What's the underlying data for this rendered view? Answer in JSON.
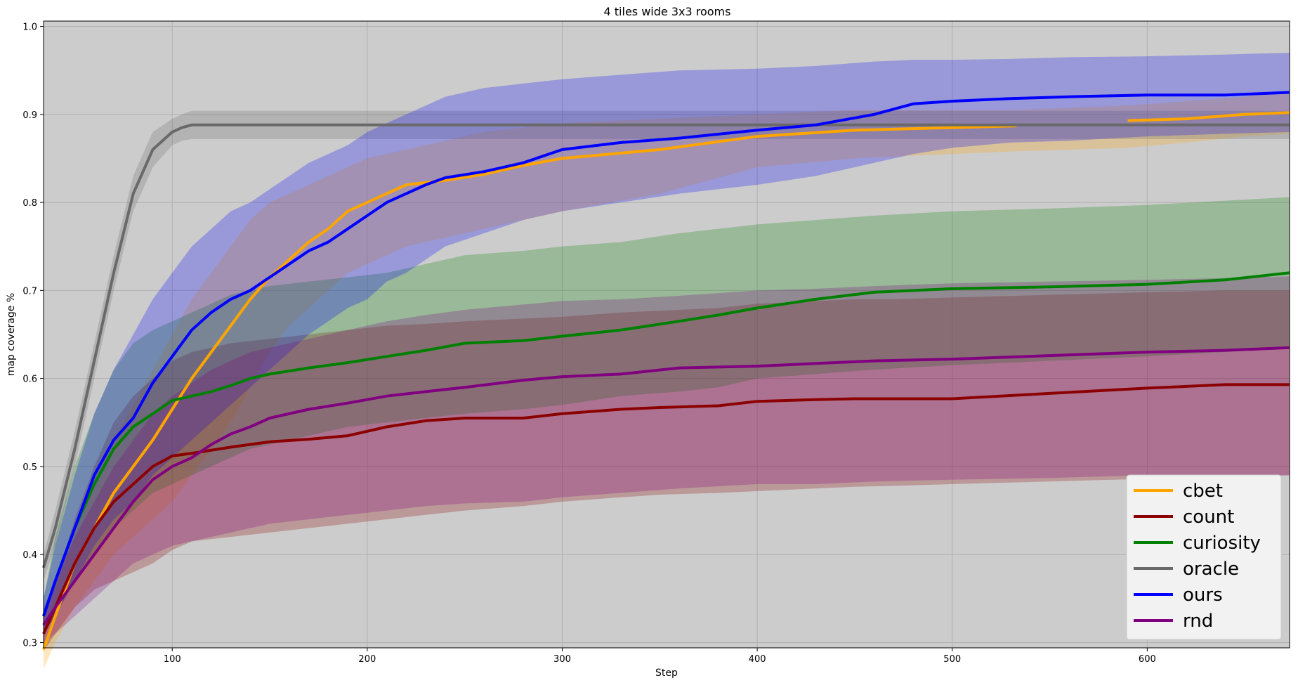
{
  "chart_data": {
    "type": "line",
    "title": "4 tiles wide 3x3 rooms",
    "xlabel": "Step",
    "ylabel": "map coverage %",
    "xlim": [
      34,
      673
    ],
    "ylim": [
      0.294,
      1.006
    ],
    "xticks": [
      100,
      200,
      300,
      400,
      500,
      600
    ],
    "yticks": [
      0.3,
      0.4,
      0.5,
      0.6,
      0.7,
      0.8,
      0.9,
      1.0
    ],
    "grid": true,
    "background": "#cccccc",
    "legend_position": "lower right",
    "series": [
      {
        "name": "cbet",
        "color": "#ffa500",
        "x": [
          34,
          40,
          50,
          60,
          70,
          80,
          90,
          100,
          110,
          120,
          130,
          140,
          150,
          160,
          170,
          180,
          190,
          200,
          220,
          240,
          260,
          280,
          300,
          350,
          400,
          450,
          500,
          533,
          590,
          620,
          650,
          673
        ],
        "y": [
          0.292,
          0.33,
          0.39,
          0.43,
          0.47,
          0.5,
          0.53,
          0.565,
          0.6,
          0.63,
          0.66,
          0.69,
          0.715,
          0.735,
          0.755,
          0.77,
          0.79,
          0.8,
          0.82,
          0.825,
          0.832,
          0.842,
          0.85,
          0.86,
          0.875,
          0.882,
          0.885,
          0.887,
          0.893,
          0.895,
          0.9,
          0.902
        ],
        "gap": [
          533,
          590
        ],
        "lower": [
          0.27,
          0.3,
          0.34,
          0.37,
          0.4,
          0.42,
          0.44,
          0.46,
          0.49,
          0.52,
          0.55,
          0.59,
          0.63,
          0.66,
          0.68,
          0.7,
          0.72,
          0.73,
          0.75,
          0.76,
          0.77,
          0.78,
          0.79,
          0.81,
          0.84,
          0.85,
          0.855,
          0.858,
          0.862,
          0.868,
          0.875,
          0.878
        ],
        "upper": [
          0.31,
          0.36,
          0.42,
          0.48,
          0.53,
          0.57,
          0.61,
          0.65,
          0.69,
          0.72,
          0.75,
          0.78,
          0.8,
          0.81,
          0.82,
          0.83,
          0.84,
          0.85,
          0.86,
          0.87,
          0.88,
          0.885,
          0.89,
          0.895,
          0.9,
          0.905,
          0.905,
          0.905,
          0.91,
          0.915,
          0.92,
          0.925
        ]
      },
      {
        "name": "count",
        "color": "#8b0000",
        "x": [
          34,
          40,
          50,
          60,
          70,
          80,
          90,
          100,
          110,
          130,
          150,
          170,
          190,
          210,
          230,
          250,
          280,
          300,
          330,
          350,
          380,
          400,
          430,
          450,
          470,
          500,
          550,
          600,
          640,
          673
        ],
        "y": [
          0.31,
          0.34,
          0.39,
          0.43,
          0.46,
          0.48,
          0.5,
          0.512,
          0.515,
          0.522,
          0.528,
          0.531,
          0.535,
          0.545,
          0.552,
          0.555,
          0.555,
          0.56,
          0.565,
          0.567,
          0.569,
          0.574,
          0.576,
          0.577,
          0.577,
          0.577,
          0.583,
          0.589,
          0.593,
          0.593
        ],
        "lower": [
          0.29,
          0.31,
          0.34,
          0.36,
          0.37,
          0.38,
          0.39,
          0.405,
          0.415,
          0.42,
          0.425,
          0.43,
          0.435,
          0.44,
          0.445,
          0.45,
          0.455,
          0.46,
          0.465,
          0.468,
          0.47,
          0.472,
          0.475,
          0.477,
          0.478,
          0.48,
          0.483,
          0.486,
          0.488,
          0.49
        ],
        "upper": [
          0.33,
          0.37,
          0.44,
          0.5,
          0.55,
          0.58,
          0.6,
          0.62,
          0.63,
          0.64,
          0.645,
          0.65,
          0.655,
          0.66,
          0.662,
          0.665,
          0.668,
          0.67,
          0.675,
          0.677,
          0.68,
          0.685,
          0.688,
          0.69,
          0.69,
          0.692,
          0.695,
          0.698,
          0.7,
          0.7
        ]
      },
      {
        "name": "curiosity",
        "color": "#008000",
        "x": [
          34,
          40,
          50,
          60,
          70,
          80,
          90,
          100,
          110,
          120,
          130,
          140,
          150,
          170,
          190,
          210,
          230,
          250,
          280,
          300,
          330,
          360,
          380,
          400,
          430,
          460,
          500,
          550,
          600,
          640,
          673
        ],
        "y": [
          0.33,
          0.37,
          0.43,
          0.48,
          0.52,
          0.545,
          0.56,
          0.575,
          0.58,
          0.585,
          0.592,
          0.6,
          0.605,
          0.612,
          0.618,
          0.625,
          0.632,
          0.64,
          0.643,
          0.648,
          0.655,
          0.665,
          0.672,
          0.68,
          0.69,
          0.698,
          0.702,
          0.704,
          0.707,
          0.712,
          0.72
        ],
        "lower": [
          0.31,
          0.33,
          0.37,
          0.4,
          0.43,
          0.45,
          0.47,
          0.48,
          0.49,
          0.5,
          0.51,
          0.52,
          0.525,
          0.535,
          0.545,
          0.55,
          0.555,
          0.56,
          0.565,
          0.57,
          0.58,
          0.585,
          0.59,
          0.6,
          0.605,
          0.61,
          0.615,
          0.62,
          0.625,
          0.63,
          0.635
        ],
        "upper": [
          0.35,
          0.42,
          0.5,
          0.56,
          0.61,
          0.64,
          0.655,
          0.665,
          0.675,
          0.685,
          0.695,
          0.7,
          0.705,
          0.71,
          0.715,
          0.72,
          0.73,
          0.74,
          0.745,
          0.75,
          0.755,
          0.765,
          0.77,
          0.775,
          0.78,
          0.785,
          0.79,
          0.793,
          0.797,
          0.802,
          0.806
        ]
      },
      {
        "name": "oracle",
        "color": "#696969",
        "x": [
          34,
          40,
          50,
          60,
          70,
          80,
          90,
          100,
          105,
          110,
          150,
          200,
          300,
          400,
          500,
          600,
          673
        ],
        "y": [
          0.385,
          0.43,
          0.52,
          0.62,
          0.72,
          0.81,
          0.86,
          0.88,
          0.885,
          0.888,
          0.888,
          0.888,
          0.888,
          0.888,
          0.888,
          0.888,
          0.888
        ],
        "lower": [
          0.37,
          0.41,
          0.5,
          0.6,
          0.7,
          0.79,
          0.84,
          0.865,
          0.87,
          0.872,
          0.872,
          0.872,
          0.872,
          0.872,
          0.872,
          0.872,
          0.872
        ],
        "upper": [
          0.4,
          0.45,
          0.54,
          0.64,
          0.74,
          0.83,
          0.88,
          0.895,
          0.9,
          0.904,
          0.904,
          0.904,
          0.904,
          0.904,
          0.904,
          0.904,
          0.904
        ]
      },
      {
        "name": "ours",
        "color": "#0000ff",
        "x": [
          34,
          40,
          50,
          60,
          70,
          80,
          90,
          100,
          110,
          120,
          130,
          140,
          150,
          160,
          170,
          180,
          190,
          200,
          210,
          220,
          230,
          240,
          260,
          280,
          300,
          330,
          360,
          400,
          430,
          460,
          480,
          500,
          530,
          560,
          600,
          640,
          673
        ],
        "y": [
          0.33,
          0.37,
          0.43,
          0.49,
          0.53,
          0.555,
          0.595,
          0.625,
          0.655,
          0.675,
          0.69,
          0.7,
          0.715,
          0.73,
          0.745,
          0.755,
          0.77,
          0.785,
          0.8,
          0.81,
          0.82,
          0.828,
          0.835,
          0.845,
          0.86,
          0.868,
          0.873,
          0.882,
          0.888,
          0.9,
          0.912,
          0.915,
          0.918,
          0.92,
          0.922,
          0.922,
          0.925
        ],
        "lower": [
          0.31,
          0.33,
          0.37,
          0.41,
          0.44,
          0.46,
          0.49,
          0.51,
          0.53,
          0.55,
          0.57,
          0.59,
          0.61,
          0.63,
          0.65,
          0.665,
          0.68,
          0.69,
          0.71,
          0.72,
          0.735,
          0.75,
          0.765,
          0.78,
          0.79,
          0.8,
          0.81,
          0.82,
          0.83,
          0.845,
          0.855,
          0.862,
          0.868,
          0.87,
          0.875,
          0.878,
          0.88
        ],
        "upper": [
          0.35,
          0.41,
          0.49,
          0.56,
          0.61,
          0.65,
          0.69,
          0.72,
          0.75,
          0.77,
          0.79,
          0.8,
          0.815,
          0.83,
          0.845,
          0.855,
          0.865,
          0.88,
          0.89,
          0.9,
          0.91,
          0.92,
          0.93,
          0.935,
          0.94,
          0.945,
          0.95,
          0.952,
          0.955,
          0.96,
          0.962,
          0.962,
          0.963,
          0.965,
          0.966,
          0.968,
          0.97
        ]
      },
      {
        "name": "rnd",
        "color": "#800080",
        "x": [
          34,
          40,
          50,
          60,
          70,
          80,
          90,
          100,
          110,
          120,
          130,
          140,
          150,
          170,
          190,
          210,
          230,
          250,
          280,
          300,
          330,
          360,
          400,
          430,
          460,
          500,
          550,
          600,
          640,
          673
        ],
        "y": [
          0.32,
          0.34,
          0.37,
          0.4,
          0.43,
          0.46,
          0.485,
          0.5,
          0.51,
          0.525,
          0.537,
          0.545,
          0.555,
          0.565,
          0.572,
          0.58,
          0.585,
          0.59,
          0.598,
          0.602,
          0.605,
          0.612,
          0.614,
          0.617,
          0.62,
          0.622,
          0.626,
          0.63,
          0.632,
          0.635
        ],
        "lower": [
          0.3,
          0.31,
          0.33,
          0.35,
          0.37,
          0.39,
          0.4,
          0.41,
          0.415,
          0.42,
          0.425,
          0.43,
          0.435,
          0.44,
          0.445,
          0.45,
          0.455,
          0.458,
          0.46,
          0.465,
          0.47,
          0.475,
          0.48,
          0.48,
          0.483,
          0.485,
          0.487,
          0.49,
          0.49,
          0.49
        ],
        "upper": [
          0.34,
          0.37,
          0.42,
          0.46,
          0.5,
          0.53,
          0.56,
          0.58,
          0.595,
          0.61,
          0.62,
          0.63,
          0.635,
          0.645,
          0.655,
          0.665,
          0.672,
          0.678,
          0.684,
          0.688,
          0.69,
          0.694,
          0.7,
          0.702,
          0.705,
          0.708,
          0.71,
          0.712,
          0.714,
          0.716
        ]
      }
    ]
  }
}
